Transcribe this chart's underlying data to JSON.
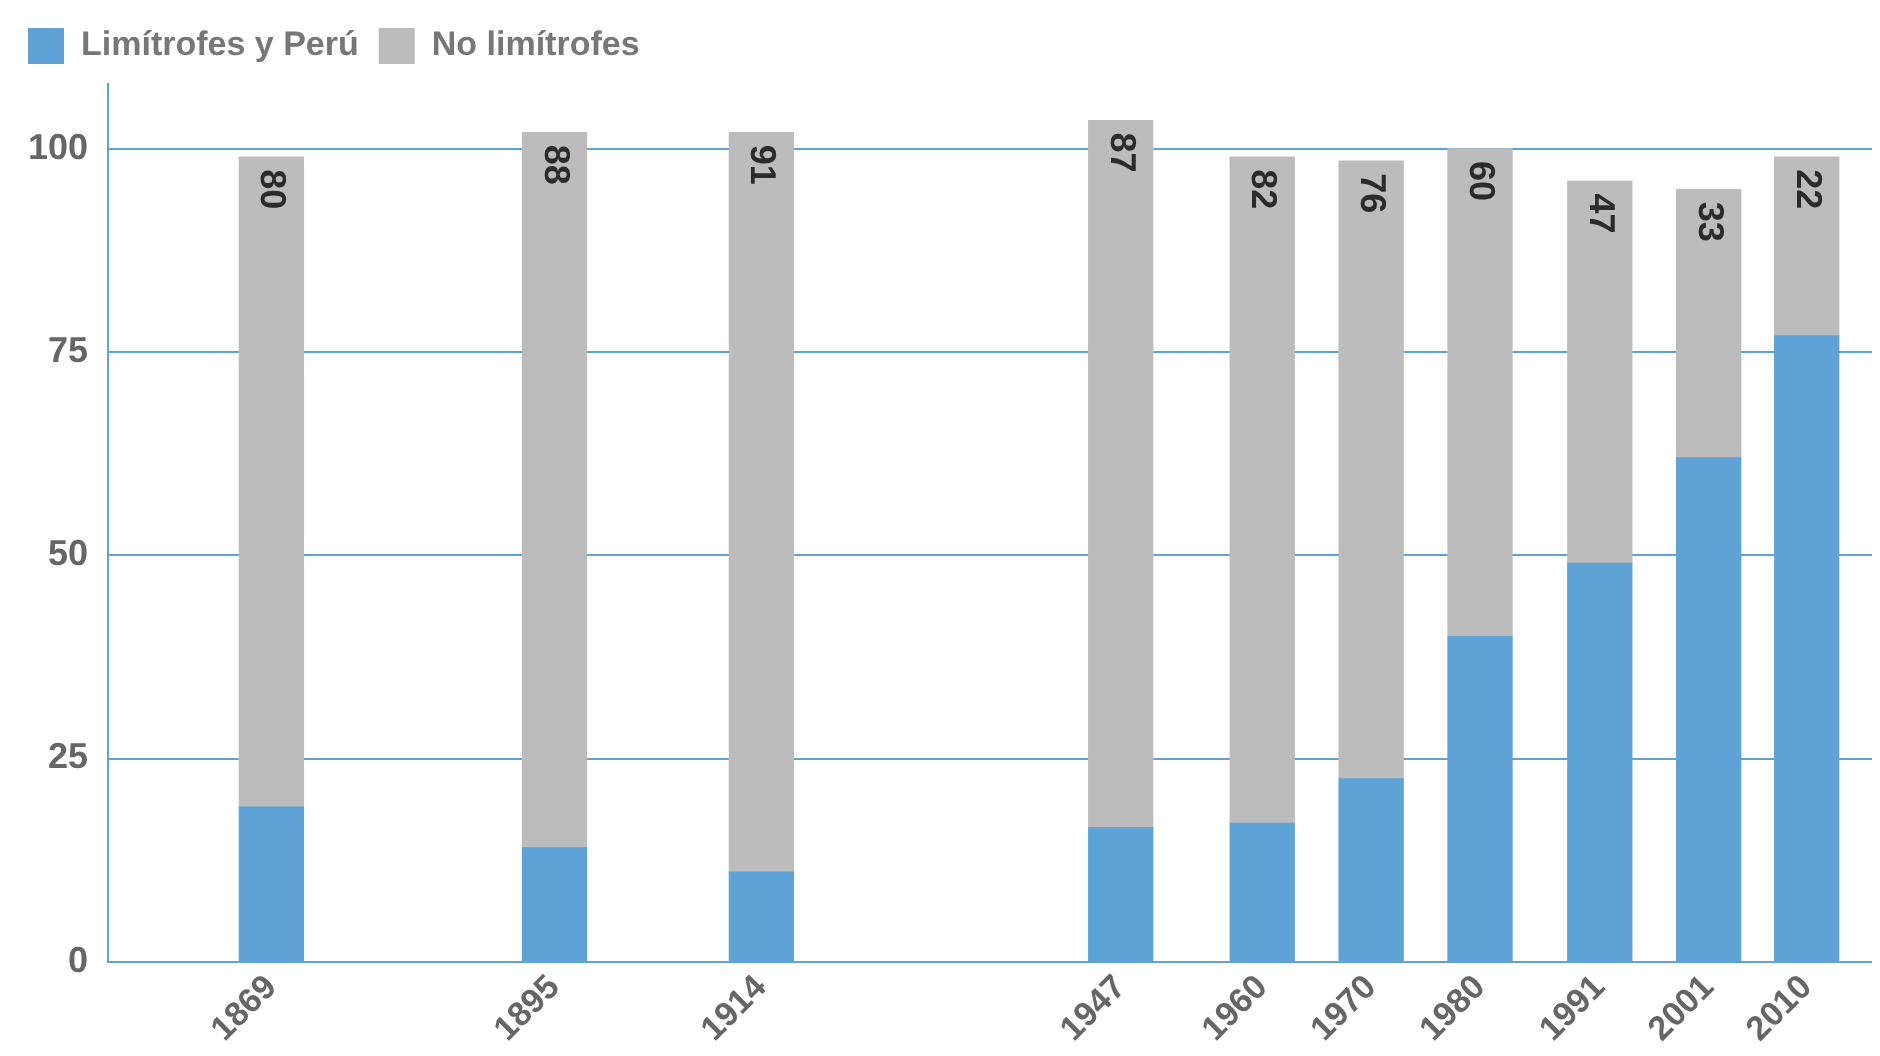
{
  "chart_data": {
    "type": "bar",
    "stacked": true,
    "x": [
      1869,
      1895,
      1914,
      1947,
      1960,
      1970,
      1980,
      1991,
      2001,
      2010
    ],
    "xlim": [
      1854,
      2016
    ],
    "xticks": [
      1869,
      1895,
      1914,
      1947,
      1960,
      1970,
      1980,
      1991,
      2001,
      2010
    ],
    "ylim": [
      0,
      108
    ],
    "yticks": [
      0,
      25,
      50,
      75,
      100
    ],
    "series": [
      {
        "name": "Limítrofes y Perú",
        "color": "#5fa3d6",
        "values": [
          19,
          14,
          11,
          16.5,
          17,
          22.5,
          40,
          49,
          62,
          77
        ]
      },
      {
        "name": "No limítrofes",
        "color": "#bdbcbd",
        "values": [
          80,
          88,
          91,
          87,
          82,
          76,
          60,
          47,
          33,
          22
        ],
        "value_labels": [
          "80",
          "88",
          "91",
          "87",
          "82",
          "76",
          "60",
          "47",
          "33",
          "22"
        ]
      }
    ],
    "grid": "y",
    "legend": "top left"
  }
}
